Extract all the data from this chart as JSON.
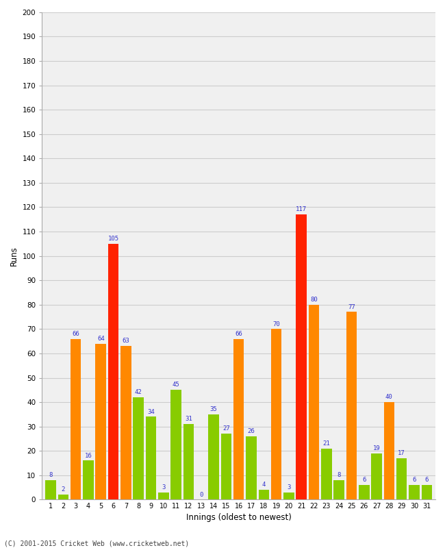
{
  "innings": [
    1,
    2,
    3,
    4,
    5,
    6,
    7,
    8,
    9,
    10,
    11,
    12,
    13,
    14,
    15,
    16,
    17,
    18,
    19,
    20,
    21,
    22,
    23,
    24,
    25,
    26,
    27,
    28,
    29,
    30,
    31
  ],
  "values": [
    8,
    2,
    66,
    16,
    64,
    105,
    63,
    42,
    34,
    3,
    45,
    31,
    0,
    35,
    27,
    66,
    26,
    4,
    70,
    3,
    117,
    80,
    21,
    8,
    77,
    6,
    19,
    40,
    17,
    6,
    6
  ],
  "colors": [
    "#88cc00",
    "#88cc00",
    "#ff8800",
    "#88cc00",
    "#ff8800",
    "#ff2200",
    "#ff8800",
    "#88cc00",
    "#88cc00",
    "#88cc00",
    "#88cc00",
    "#88cc00",
    "#88cc00",
    "#88cc00",
    "#88cc00",
    "#ff8800",
    "#88cc00",
    "#88cc00",
    "#ff8800",
    "#88cc00",
    "#ff2200",
    "#ff8800",
    "#88cc00",
    "#88cc00",
    "#ff8800",
    "#88cc00",
    "#88cc00",
    "#ff8800",
    "#88cc00",
    "#88cc00",
    "#88cc00"
  ],
  "xlabel": "Innings (oldest to newest)",
  "ylabel": "Runs",
  "ylim": [
    0,
    200
  ],
  "yticks": [
    0,
    10,
    20,
    30,
    40,
    50,
    60,
    70,
    80,
    90,
    100,
    110,
    120,
    130,
    140,
    150,
    160,
    170,
    180,
    190,
    200
  ],
  "label_color": "#3333cc",
  "bg_color": "#ffffff",
  "plot_bg_color": "#f0f0f0",
  "grid_color": "#cccccc",
  "footer": "(C) 2001-2015 Cricket Web (www.cricketweb.net)"
}
